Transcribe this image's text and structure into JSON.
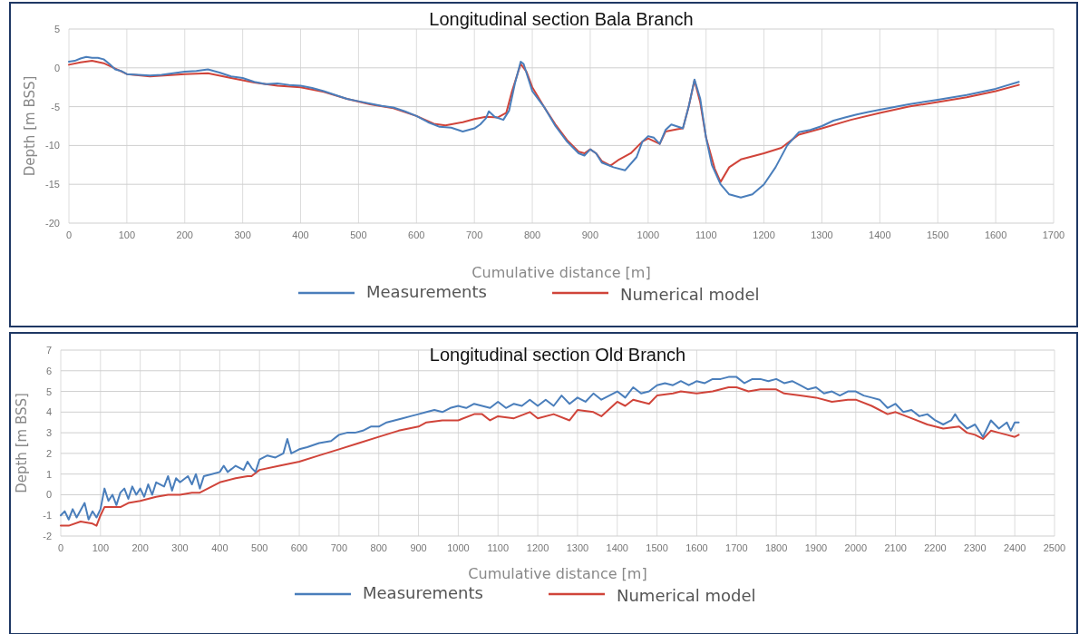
{
  "chart_data": [
    {
      "type": "line",
      "title": "Longitudinal section Bala Branch",
      "xlabel": "Cumulative distance [m]",
      "ylabel": "Depth [m BSS]",
      "xlim": [
        0,
        1700
      ],
      "xticks": [
        0,
        100,
        200,
        300,
        400,
        500,
        600,
        700,
        800,
        900,
        1000,
        1100,
        1200,
        1300,
        1400,
        1500,
        1600,
        1700
      ],
      "ylim": [
        -20,
        5
      ],
      "yticks": [
        -20,
        -15,
        -10,
        -5,
        0,
        5
      ],
      "grid": true,
      "legend": "bottom",
      "line_style": "solid",
      "series": [
        {
          "name": "Measurements",
          "color": "#4a7ebb",
          "x": [
            0,
            10,
            20,
            30,
            40,
            50,
            60,
            70,
            80,
            90,
            100,
            120,
            140,
            160,
            180,
            200,
            220,
            240,
            260,
            280,
            300,
            320,
            340,
            360,
            380,
            400,
            420,
            440,
            460,
            480,
            500,
            520,
            540,
            560,
            580,
            600,
            620,
            640,
            660,
            680,
            700,
            710,
            720,
            725,
            735,
            750,
            760,
            770,
            780,
            785,
            800,
            820,
            840,
            860,
            880,
            890,
            900,
            910,
            920,
            940,
            960,
            980,
            990,
            1000,
            1010,
            1020,
            1030,
            1040,
            1060,
            1070,
            1080,
            1090,
            1100,
            1110,
            1125,
            1140,
            1160,
            1180,
            1200,
            1220,
            1240,
            1260,
            1280,
            1300,
            1320,
            1340,
            1360,
            1380,
            1400,
            1450,
            1500,
            1550,
            1600,
            1640
          ],
          "values": [
            0.8,
            0.9,
            1.2,
            1.4,
            1.3,
            1.3,
            1.1,
            0.5,
            -0.2,
            -0.4,
            -0.8,
            -0.9,
            -1,
            -0.9,
            -0.7,
            -0.5,
            -0.4,
            -0.2,
            -0.6,
            -1.1,
            -1.3,
            -1.8,
            -2.1,
            -2.0,
            -2.2,
            -2.3,
            -2.6,
            -3.0,
            -3.5,
            -4.0,
            -4.3,
            -4.6,
            -4.9,
            -5.1,
            -5.6,
            -6.2,
            -7.0,
            -7.6,
            -7.7,
            -8.2,
            -7.8,
            -7.3,
            -6.5,
            -5.6,
            -6.3,
            -6.7,
            -5.5,
            -2.0,
            0.8,
            0.5,
            -3.0,
            -5.0,
            -7.5,
            -9.5,
            -11.0,
            -11.3,
            -10.5,
            -11.0,
            -12.2,
            -12.8,
            -13.2,
            -11.5,
            -9.5,
            -8.8,
            -9.0,
            -9.8,
            -8.0,
            -7.3,
            -7.8,
            -5.0,
            -1.5,
            -4.0,
            -9.0,
            -12.5,
            -15.0,
            -16.3,
            -16.7,
            -16.3,
            -15.0,
            -12.8,
            -10.0,
            -8.3,
            -8.0,
            -7.5,
            -6.8,
            -6.4,
            -6.0,
            -5.7,
            -5.4,
            -4.7,
            -4.1,
            -3.5,
            -2.7,
            -1.8
          ]
        },
        {
          "name": "Numerical model",
          "color": "#d0443a",
          "x": [
            0,
            20,
            40,
            60,
            80,
            100,
            140,
            200,
            240,
            280,
            320,
            360,
            400,
            440,
            480,
            520,
            560,
            600,
            630,
            650,
            680,
            700,
            720,
            740,
            755,
            765,
            780,
            790,
            800,
            820,
            840,
            860,
            880,
            890,
            900,
            910,
            920,
            935,
            950,
            970,
            990,
            1000,
            1020,
            1030,
            1050,
            1060,
            1070,
            1080,
            1090,
            1100,
            1115,
            1125,
            1140,
            1160,
            1200,
            1230,
            1260,
            1300,
            1350,
            1400,
            1450,
            1500,
            1550,
            1600,
            1640
          ],
          "values": [
            0.4,
            0.7,
            0.9,
            0.6,
            -0.1,
            -0.8,
            -1.1,
            -0.8,
            -0.7,
            -1.3,
            -1.9,
            -2.3,
            -2.5,
            -3.1,
            -4.0,
            -4.7,
            -5.2,
            -6.2,
            -7.2,
            -7.4,
            -7.0,
            -6.6,
            -6.3,
            -6.4,
            -5.8,
            -3.0,
            0.5,
            -0.5,
            -2.5,
            -5,
            -7.3,
            -9.3,
            -10.8,
            -11.0,
            -10.5,
            -11.0,
            -12.0,
            -12.6,
            -11.8,
            -11.0,
            -9.5,
            -9.1,
            -9.8,
            -8.2,
            -7.9,
            -7.8,
            -5.0,
            -1.6,
            -4.5,
            -9.0,
            -13.0,
            -14.7,
            -12.8,
            -11.8,
            -11.0,
            -10.3,
            -8.6,
            -7.8,
            -6.7,
            -5.8,
            -5.0,
            -4.4,
            -3.8,
            -3.0,
            -2.2
          ]
        }
      ]
    },
    {
      "type": "line",
      "title": "Longitudinal section Old Branch",
      "xlabel": "Cumulative distance [m]",
      "ylabel": "Depth [m BSS]",
      "xlim": [
        0,
        2500
      ],
      "xticks": [
        0,
        100,
        200,
        300,
        400,
        500,
        600,
        700,
        800,
        900,
        1000,
        1100,
        1200,
        1300,
        1400,
        1500,
        1600,
        1700,
        1800,
        1900,
        2000,
        2100,
        2200,
        2300,
        2400,
        2500
      ],
      "ylim": [
        -2,
        7
      ],
      "yticks": [
        -2,
        -1,
        0,
        1,
        2,
        3,
        4,
        5,
        6,
        7
      ],
      "grid": true,
      "legend": "bottom",
      "line_style": "solid",
      "series": [
        {
          "name": "Measurements",
          "color": "#4a7ebb",
          "x": [
            0,
            10,
            20,
            30,
            40,
            60,
            70,
            80,
            90,
            100,
            110,
            120,
            130,
            140,
            150,
            160,
            170,
            180,
            190,
            200,
            210,
            220,
            230,
            240,
            260,
            270,
            280,
            290,
            300,
            320,
            330,
            340,
            350,
            360,
            380,
            400,
            410,
            420,
            440,
            460,
            470,
            480,
            490,
            500,
            520,
            540,
            560,
            570,
            580,
            600,
            620,
            650,
            680,
            700,
            720,
            740,
            760,
            780,
            800,
            820,
            840,
            860,
            880,
            900,
            920,
            940,
            960,
            980,
            1000,
            1020,
            1040,
            1060,
            1080,
            1100,
            1120,
            1140,
            1160,
            1180,
            1200,
            1220,
            1240,
            1260,
            1280,
            1300,
            1320,
            1340,
            1360,
            1380,
            1400,
            1420,
            1440,
            1460,
            1480,
            1500,
            1520,
            1540,
            1560,
            1580,
            1600,
            1620,
            1640,
            1660,
            1680,
            1700,
            1720,
            1740,
            1760,
            1780,
            1800,
            1820,
            1840,
            1860,
            1880,
            1900,
            1920,
            1940,
            1960,
            1980,
            2000,
            2020,
            2040,
            2060,
            2080,
            2100,
            2120,
            2140,
            2160,
            2180,
            2200,
            2220,
            2240,
            2250,
            2260,
            2280,
            2300,
            2320,
            2340,
            2360,
            2380,
            2390,
            2400,
            2410
          ],
          "values": [
            -1.0,
            -0.8,
            -1.2,
            -0.7,
            -1.1,
            -0.4,
            -1.2,
            -0.8,
            -1.1,
            -0.7,
            0.3,
            -0.3,
            0.0,
            -0.5,
            0.1,
            0.3,
            -0.2,
            0.4,
            0.0,
            0.3,
            -0.1,
            0.5,
            0.0,
            0.6,
            0.4,
            0.9,
            0.2,
            0.8,
            0.6,
            0.9,
            0.5,
            1.0,
            0.3,
            0.9,
            1.0,
            1.1,
            1.4,
            1.1,
            1.4,
            1.2,
            1.6,
            1.3,
            1.1,
            1.7,
            1.9,
            1.8,
            2.0,
            2.7,
            2.0,
            2.2,
            2.3,
            2.5,
            2.6,
            2.9,
            3.0,
            3.0,
            3.1,
            3.3,
            3.3,
            3.5,
            3.6,
            3.7,
            3.8,
            3.9,
            4.0,
            4.1,
            4.0,
            4.2,
            4.3,
            4.2,
            4.4,
            4.3,
            4.2,
            4.5,
            4.2,
            4.4,
            4.3,
            4.6,
            4.3,
            4.6,
            4.3,
            4.8,
            4.4,
            4.7,
            4.5,
            4.9,
            4.6,
            4.8,
            5.0,
            4.7,
            5.2,
            4.9,
            5.0,
            5.3,
            5.4,
            5.3,
            5.5,
            5.3,
            5.5,
            5.4,
            5.6,
            5.6,
            5.7,
            5.7,
            5.4,
            5.6,
            5.6,
            5.5,
            5.6,
            5.4,
            5.5,
            5.3,
            5.1,
            5.2,
            4.9,
            5.0,
            4.8,
            5.0,
            5.0,
            4.8,
            4.7,
            4.6,
            4.2,
            4.4,
            4.0,
            4.1,
            3.8,
            3.9,
            3.6,
            3.4,
            3.6,
            3.9,
            3.6,
            3.2,
            3.4,
            2.8,
            3.6,
            3.2,
            3.5,
            3.1,
            3.5,
            3.5
          ]
        },
        {
          "name": "Numerical model",
          "color": "#d0443a",
          "x": [
            0,
            20,
            50,
            80,
            90,
            100,
            110,
            130,
            150,
            170,
            200,
            240,
            270,
            300,
            330,
            350,
            380,
            400,
            440,
            470,
            480,
            500,
            550,
            600,
            650,
            700,
            750,
            800,
            850,
            900,
            920,
            960,
            1000,
            1040,
            1060,
            1080,
            1100,
            1140,
            1180,
            1200,
            1240,
            1280,
            1300,
            1340,
            1360,
            1400,
            1420,
            1440,
            1480,
            1500,
            1540,
            1560,
            1600,
            1640,
            1680,
            1700,
            1730,
            1760,
            1800,
            1820,
            1860,
            1900,
            1940,
            1980,
            2000,
            2040,
            2080,
            2100,
            2140,
            2180,
            2220,
            2260,
            2280,
            2300,
            2320,
            2340,
            2360,
            2380,
            2400,
            2410
          ],
          "values": [
            -1.5,
            -1.5,
            -1.3,
            -1.4,
            -1.5,
            -1.0,
            -0.6,
            -0.6,
            -0.6,
            -0.4,
            -0.3,
            -0.1,
            0.0,
            0.0,
            0.1,
            0.1,
            0.4,
            0.6,
            0.8,
            0.9,
            0.9,
            1.2,
            1.4,
            1.6,
            1.9,
            2.2,
            2.5,
            2.8,
            3.1,
            3.3,
            3.5,
            3.6,
            3.6,
            3.9,
            3.9,
            3.6,
            3.8,
            3.7,
            4.0,
            3.7,
            3.9,
            3.6,
            4.1,
            4.0,
            3.8,
            4.5,
            4.3,
            4.6,
            4.4,
            4.8,
            4.9,
            5.0,
            4.9,
            5.0,
            5.2,
            5.2,
            5.0,
            5.1,
            5.1,
            4.9,
            4.8,
            4.7,
            4.5,
            4.6,
            4.6,
            4.3,
            3.9,
            4.0,
            3.7,
            3.4,
            3.2,
            3.3,
            3.0,
            2.9,
            2.7,
            3.1,
            3.0,
            2.9,
            2.8,
            2.9
          ]
        }
      ]
    }
  ]
}
